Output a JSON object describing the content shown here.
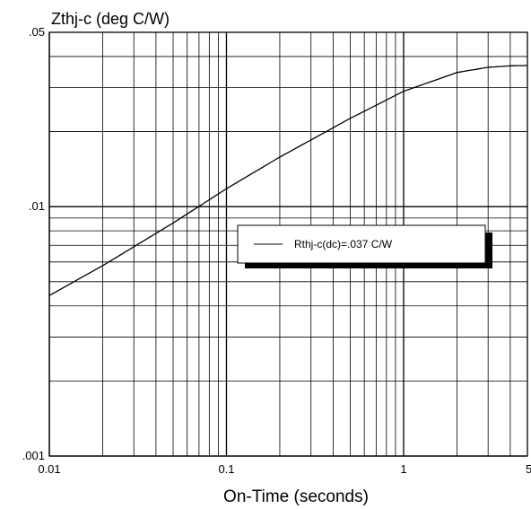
{
  "chart_data": {
    "type": "line",
    "ylabel": "Zthj-c (deg C/W)",
    "xlabel": "On-Time (seconds)",
    "x_scale": "log",
    "y_scale": "log",
    "xlim": [
      0.01,
      5
    ],
    "ylim": [
      0.001,
      0.05
    ],
    "x_ticks": [
      {
        "value": 0.01,
        "label": "0.01"
      },
      {
        "value": 0.1,
        "label": "0.1"
      },
      {
        "value": 1,
        "label": "1"
      },
      {
        "value": 5,
        "label": "5"
      }
    ],
    "y_ticks": [
      {
        "value": 0.001,
        "label": ".001"
      },
      {
        "value": 0.01,
        "label": ".01"
      },
      {
        "value": 0.05,
        "label": ".05"
      }
    ],
    "grid": true,
    "legend": {
      "position": "center-right",
      "entry": "Rthj-c(dc)=.037 C/W"
    },
    "series": [
      {
        "name": "Rthj-c(dc)=.037 C/W",
        "color": "#000000",
        "x": [
          0.01,
          0.02,
          0.05,
          0.1,
          0.2,
          0.5,
          1,
          2,
          3,
          4,
          5
        ],
        "y": [
          0.0044,
          0.0058,
          0.0086,
          0.0118,
          0.0158,
          0.0226,
          0.029,
          0.0345,
          0.0362,
          0.0367,
          0.0368
        ]
      }
    ]
  }
}
